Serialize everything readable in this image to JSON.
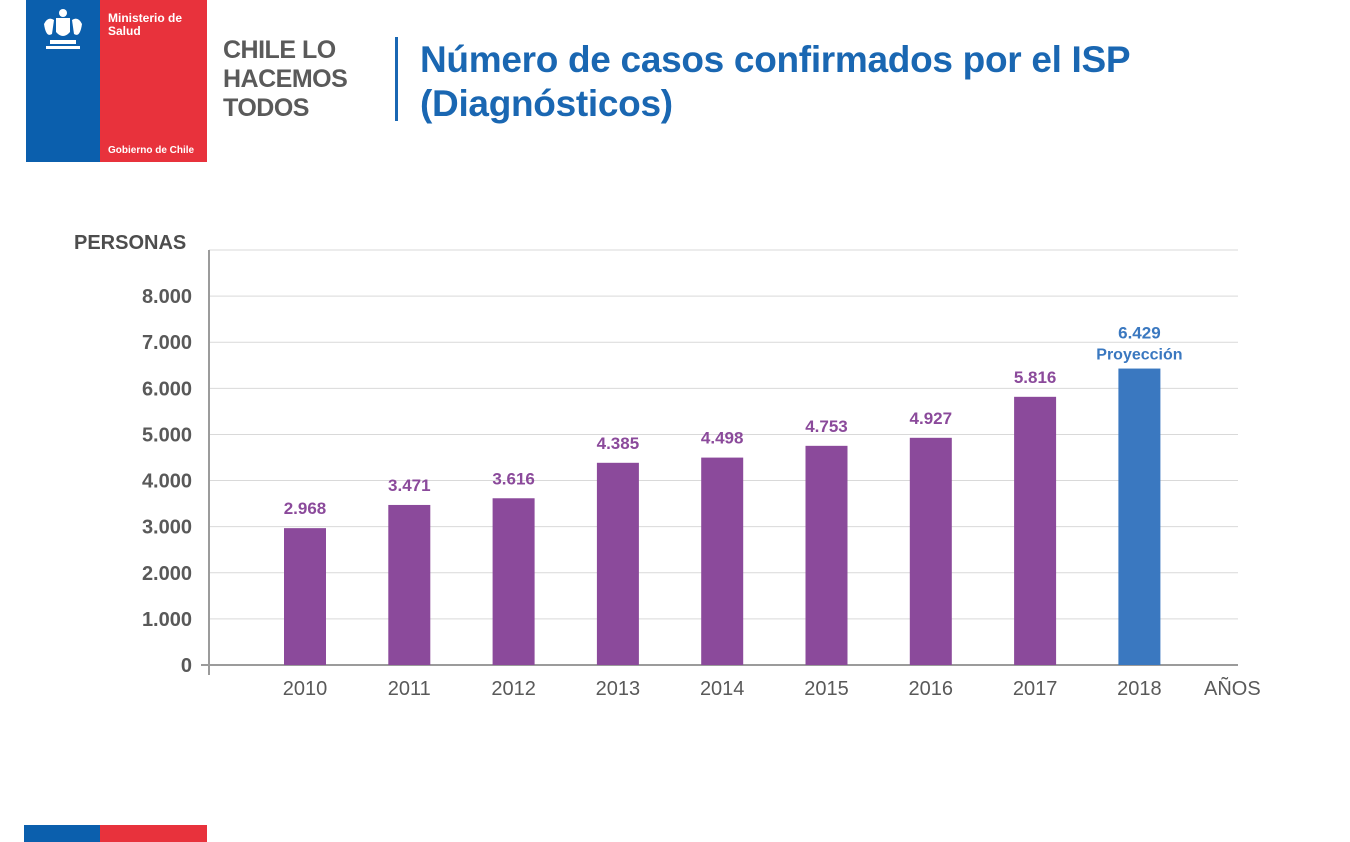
{
  "header": {
    "ministry": "Ministerio de Salud",
    "government": "Gobierno de Chile",
    "slogan": "CHILE LO\nHACEMOS\nTODOS",
    "title": "Número de casos confirmados por el ISP (Diagnósticos)"
  },
  "chart_data": {
    "type": "bar",
    "title": "Número de casos confirmados por el ISP (Diagnósticos)",
    "ylabel": "PERSONAS",
    "xlabel": "AÑOS",
    "ylim": [
      0,
      9000
    ],
    "yticks": [
      0,
      1000,
      2000,
      3000,
      4000,
      5000,
      6000,
      7000,
      8000
    ],
    "ytick_labels": [
      "0",
      "1.000",
      "2.000",
      "3.000",
      "4.000",
      "5.000",
      "6.000",
      "7.000",
      "8.000"
    ],
    "grid": true,
    "categories": [
      "2010",
      "2011",
      "2012",
      "2013",
      "2014",
      "2015",
      "2016",
      "2017",
      "2018"
    ],
    "values": [
      2968,
      3471,
      3616,
      4385,
      4498,
      4753,
      4927,
      5816,
      6429
    ],
    "value_labels": [
      "2.968",
      "3.471",
      "3.616",
      "4.385",
      "4.498",
      "4.753",
      "4.927",
      "5.816",
      "6.429"
    ],
    "projection_note": "Proyección",
    "projection_category": "2018",
    "colors": {
      "actual": "#8b4a9b",
      "projection": "#3a78c0",
      "axis": "#9b9b9b",
      "grid": "#d9d9d9",
      "tick_text": "#595959"
    }
  }
}
